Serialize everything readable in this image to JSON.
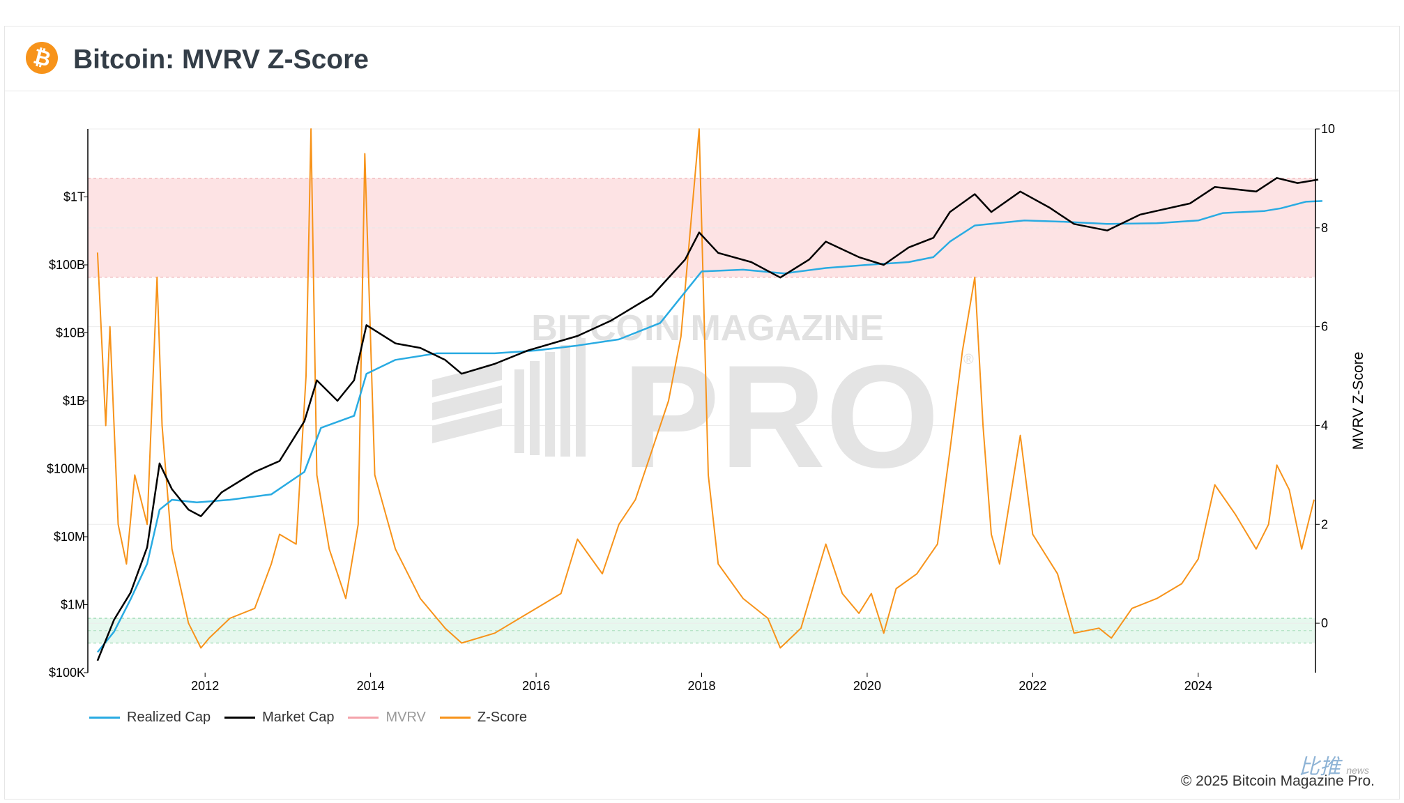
{
  "header": {
    "title": "Bitcoin: MVRV Z-Score",
    "logo_icon": "bitcoin-icon",
    "logo_glyph": "₿"
  },
  "watermark": {
    "line1": "BITCOIN MAGAZINE",
    "line2": "PRO",
    "trademark": "®"
  },
  "corner_brand": {
    "text": "比推",
    "sub": "news"
  },
  "copyright": "© 2025 Bitcoin Magazine Pro.",
  "colors": {
    "realized_cap": "#29abe2",
    "market_cap": "#000000",
    "mvrv": "#f4a3ab",
    "zscore": "#f7931a",
    "red_zone": "#fde3e4",
    "green_zone": "#e6f8ee"
  },
  "chart_data": {
    "type": "line",
    "x_range": [
      "2010-08",
      "2025-06"
    ],
    "x_ticks": [
      "2012",
      "2014",
      "2016",
      "2018",
      "2020",
      "2022",
      "2024"
    ],
    "y_left": {
      "scale": "log",
      "range": [
        100000,
        10000000000000.0
      ],
      "ticks": [
        {
          "value": 100000.0,
          "label": "$100K"
        },
        {
          "value": 1000000.0,
          "label": "$1M"
        },
        {
          "value": 10000000.0,
          "label": "$10M"
        },
        {
          "value": 100000000.0,
          "label": "$100M"
        },
        {
          "value": 1000000000.0,
          "label": "$1B"
        },
        {
          "value": 10000000000.0,
          "label": "$10B"
        },
        {
          "value": 100000000000.0,
          "label": "$100B"
        },
        {
          "value": 1000000000000.0,
          "label": "$1T"
        }
      ]
    },
    "y_right": {
      "label": "MVRV Z-Score",
      "range": [
        -1,
        10
      ],
      "ticks": [
        0,
        2,
        4,
        6,
        8,
        10
      ]
    },
    "zones": [
      {
        "name": "red",
        "from": 7,
        "to": 9
      },
      {
        "name": "green",
        "from": -0.4,
        "to": 0.1
      }
    ],
    "legend": [
      "Realized Cap",
      "Market Cap",
      "MVRV",
      "Z-Score"
    ],
    "series": [
      {
        "name": "Realized Cap",
        "axis": "left",
        "points": [
          [
            "2010.7",
            200000.0
          ],
          [
            "2010.9",
            400000.0
          ],
          [
            "2011.1",
            1200000.0
          ],
          [
            "2011.3",
            4000000.0
          ],
          [
            "2011.45",
            25000000.0
          ],
          [
            "2011.6",
            35000000.0
          ],
          [
            "2011.9",
            32000000.0
          ],
          [
            "2012.3",
            35000000.0
          ],
          [
            "2012.8",
            42000000.0
          ],
          [
            "2013.2",
            90000000.0
          ],
          [
            "2013.4",
            400000000.0
          ],
          [
            "2013.8",
            600000000.0
          ],
          [
            "2013.95",
            2500000000.0
          ],
          [
            "2014.3",
            4000000000.0
          ],
          [
            "2014.8",
            5000000000.0
          ],
          [
            "2015.5",
            5000000000.0
          ],
          [
            "2016.0",
            5500000000.0
          ],
          [
            "2016.5",
            6500000000.0
          ],
          [
            "2017.0",
            8000000000.0
          ],
          [
            "2017.5",
            14000000000.0
          ],
          [
            "2017.8",
            40000000000.0
          ],
          [
            "2018.0",
            80000000000.0
          ],
          [
            "2018.5",
            85000000000.0
          ],
          [
            "2019.0",
            75000000000.0
          ],
          [
            "2019.5",
            90000000000.0
          ],
          [
            "2020.0",
            100000000000.0
          ],
          [
            "2020.5",
            110000000000.0
          ],
          [
            "2020.8",
            130000000000.0
          ],
          [
            "2021.0",
            220000000000.0
          ],
          [
            "2021.3",
            380000000000.0
          ],
          [
            "2021.9",
            450000000000.0
          ],
          [
            "2022.4",
            430000000000.0
          ],
          [
            "2022.9",
            400000000000.0
          ],
          [
            "2023.5",
            410000000000.0
          ],
          [
            "2024.0",
            450000000000.0
          ],
          [
            "2024.3",
            580000000000.0
          ],
          [
            "2024.8",
            620000000000.0
          ],
          [
            "2025.0",
            680000000000.0
          ],
          [
            "2025.3",
            850000000000.0
          ],
          [
            "2025.5",
            870000000000.0
          ]
        ]
      },
      {
        "name": "Market Cap",
        "axis": "left",
        "points": [
          [
            "2010.7",
            150000.0
          ],
          [
            "2010.9",
            600000.0
          ],
          [
            "2011.1",
            1500000.0
          ],
          [
            "2011.3",
            7000000.0
          ],
          [
            "2011.45",
            120000000.0
          ],
          [
            "2011.6",
            50000000.0
          ],
          [
            "2011.8",
            25000000.0
          ],
          [
            "2011.95",
            20000000.0
          ],
          [
            "2012.2",
            45000000.0
          ],
          [
            "2012.6",
            90000000.0
          ],
          [
            "2012.9",
            130000000.0
          ],
          [
            "2013.2",
            500000000.0
          ],
          [
            "2013.35",
            2000000000.0
          ],
          [
            "2013.6",
            1000000000.0
          ],
          [
            "2013.8",
            2000000000.0
          ],
          [
            "2013.95",
            13000000000.0
          ],
          [
            "2014.3",
            7000000000.0
          ],
          [
            "2014.6",
            6000000000.0
          ],
          [
            "2014.9",
            4000000000.0
          ],
          [
            "2015.1",
            2500000000.0
          ],
          [
            "2015.5",
            3500000000.0
          ],
          [
            "2015.9",
            5500000000.0
          ],
          [
            "2016.5",
            9000000000.0
          ],
          [
            "2016.9",
            15000000000.0
          ],
          [
            "2017.4",
            35000000000.0
          ],
          [
            "2017.8",
            120000000000.0
          ],
          [
            "2017.97",
            300000000000.0
          ],
          [
            "2018.2",
            150000000000.0
          ],
          [
            "2018.6",
            110000000000.0
          ],
          [
            "2018.95",
            65000000000.0
          ],
          [
            "2019.3",
            120000000000.0
          ],
          [
            "2019.5",
            220000000000.0
          ],
          [
            "2019.9",
            130000000000.0
          ],
          [
            "2020.2",
            100000000000.0
          ],
          [
            "2020.5",
            180000000000.0
          ],
          [
            "2020.8",
            250000000000.0
          ],
          [
            "2021.0",
            600000000000.0
          ],
          [
            "2021.3",
            1100000000000.0
          ],
          [
            "2021.5",
            600000000000.0
          ],
          [
            "2021.85",
            1200000000000.0
          ],
          [
            "2022.2",
            700000000000.0
          ],
          [
            "2022.5",
            400000000000.0
          ],
          [
            "2022.9",
            320000000000.0
          ],
          [
            "2023.3",
            550000000000.0
          ],
          [
            "2023.9",
            800000000000.0
          ],
          [
            "2024.2",
            1400000000000.0
          ],
          [
            "2024.7",
            1200000000000.0
          ],
          [
            "2024.95",
            1900000000000.0
          ],
          [
            "2025.2",
            1600000000000.0
          ],
          [
            "2025.45",
            1800000000000.0
          ]
        ]
      },
      {
        "name": "Z-Score",
        "axis": "right",
        "points": [
          [
            "2010.7",
            7.5
          ],
          [
            "2010.8",
            4
          ],
          [
            "2010.85",
            6
          ],
          [
            "2010.95",
            2
          ],
          [
            "2011.05",
            1.2
          ],
          [
            "2011.15",
            3
          ],
          [
            "2011.3",
            2
          ],
          [
            "2011.42",
            7
          ],
          [
            "2011.48",
            4
          ],
          [
            "2011.6",
            1.5
          ],
          [
            "2011.8",
            0
          ],
          [
            "2011.95",
            -0.5
          ],
          [
            "2012.05",
            -0.3
          ],
          [
            "2012.3",
            0.1
          ],
          [
            "2012.6",
            0.3
          ],
          [
            "2012.8",
            1.2
          ],
          [
            "2012.9",
            1.8
          ],
          [
            "2013.1",
            1.6
          ],
          [
            "2013.22",
            5
          ],
          [
            "2013.28",
            10
          ],
          [
            "2013.35",
            3
          ],
          [
            "2013.5",
            1.5
          ],
          [
            "2013.7",
            0.5
          ],
          [
            "2013.85",
            2
          ],
          [
            "2013.93",
            9.5
          ],
          [
            "2014.05",
            3
          ],
          [
            "2014.3",
            1.5
          ],
          [
            "2014.6",
            0.5
          ],
          [
            "2014.9",
            -0.1
          ],
          [
            "2015.1",
            -0.4
          ],
          [
            "2015.5",
            -0.2
          ],
          [
            "2015.9",
            0.2
          ],
          [
            "2016.3",
            0.6
          ],
          [
            "2016.5",
            1.7
          ],
          [
            "2016.8",
            1
          ],
          [
            "2017.0",
            2
          ],
          [
            "2017.2",
            2.5
          ],
          [
            "2017.4",
            3.5
          ],
          [
            "2017.6",
            4.5
          ],
          [
            "2017.75",
            5.8
          ],
          [
            "2017.97",
            10
          ],
          [
            "2018.08",
            3
          ],
          [
            "2018.2",
            1.2
          ],
          [
            "2018.5",
            0.5
          ],
          [
            "2018.8",
            0.1
          ],
          [
            "2018.95",
            -0.5
          ],
          [
            "2019.2",
            -0.1
          ],
          [
            "2019.5",
            1.6
          ],
          [
            "2019.7",
            0.6
          ],
          [
            "2019.9",
            0.2
          ],
          [
            "2020.05",
            0.6
          ],
          [
            "2020.2",
            -0.2
          ],
          [
            "2020.35",
            0.7
          ],
          [
            "2020.6",
            1
          ],
          [
            "2020.85",
            1.6
          ],
          [
            "2021.0",
            3.5
          ],
          [
            "2021.15",
            5.5
          ],
          [
            "2021.3",
            7
          ],
          [
            "2021.4",
            4
          ],
          [
            "2021.5",
            1.8
          ],
          [
            "2021.6",
            1.2
          ],
          [
            "2021.85",
            3.8
          ],
          [
            "2022.0",
            1.8
          ],
          [
            "2022.3",
            1
          ],
          [
            "2022.5",
            -0.2
          ],
          [
            "2022.8",
            -0.1
          ],
          [
            "2022.95",
            -0.3
          ],
          [
            "2023.2",
            0.3
          ],
          [
            "2023.5",
            0.5
          ],
          [
            "2023.8",
            0.8
          ],
          [
            "2024.0",
            1.3
          ],
          [
            "2024.2",
            2.8
          ],
          [
            "2024.45",
            2.2
          ],
          [
            "2024.7",
            1.5
          ],
          [
            "2024.85",
            2
          ],
          [
            "2024.95",
            3.2
          ],
          [
            "2025.1",
            2.7
          ],
          [
            "2025.25",
            1.5
          ],
          [
            "2025.4",
            2.5
          ]
        ]
      }
    ]
  }
}
